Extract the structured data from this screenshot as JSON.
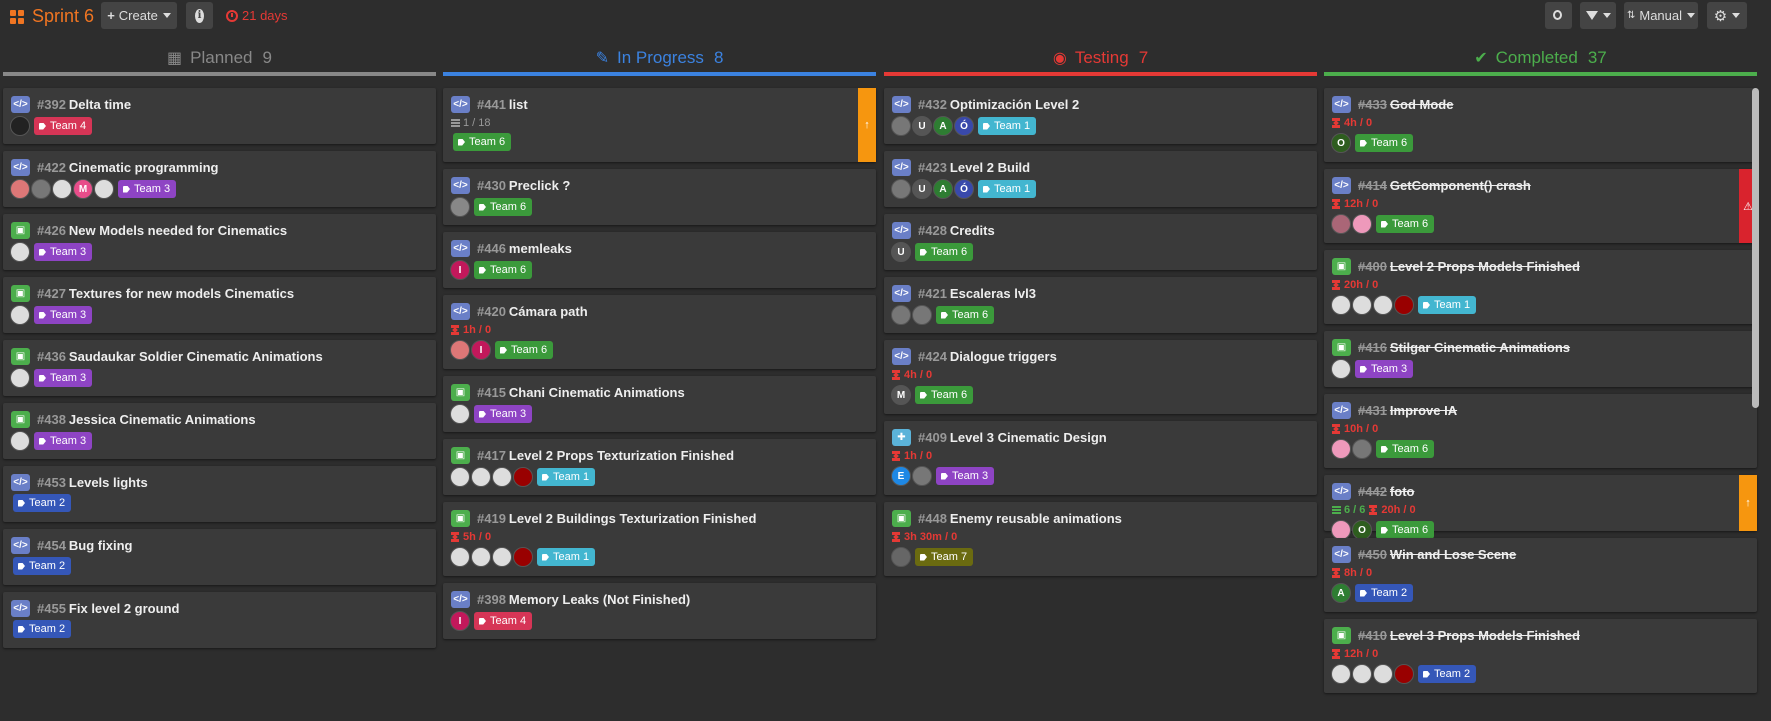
{
  "header": {
    "sprint": "Sprint 6",
    "create": "Create",
    "days": "21 days",
    "manual": "Manual"
  },
  "colors": {
    "Team 1": "#43b6d0",
    "Team 2": "#3557b8",
    "Team 3": "#8e44c4",
    "Team 4": "#d63556",
    "Team 6": "#3b9a3b",
    "Team 7": "#6b6b10"
  },
  "columns": [
    {
      "name": "Planned",
      "count": "9",
      "color": "#888888",
      "icon": "calendar-icon",
      "cards": [
        {
          "type": "code",
          "num": "#392",
          "title": "Delta time",
          "people": [
            {
              "c": "#222",
              "l": ""
            }
          ],
          "tag": "Team 4"
        },
        {
          "type": "code",
          "num": "#422",
          "title": "Cinematic programming",
          "people": [
            {
              "c": "#d77",
              "l": ""
            },
            {
              "c": "#777",
              "l": ""
            },
            {
              "c": "#ddd",
              "l": ""
            },
            {
              "c": "#e84d8a",
              "l": "M"
            },
            {
              "c": "#ddd",
              "l": ""
            }
          ],
          "tag": "Team 3"
        },
        {
          "type": "img",
          "num": "#426",
          "title": "New Models needed for Cinematics",
          "people": [
            {
              "c": "#ddd",
              "l": ""
            }
          ],
          "tag": "Team 3"
        },
        {
          "type": "img",
          "num": "#427",
          "title": "Textures for new models Cinematics",
          "people": [
            {
              "c": "#ddd",
              "l": ""
            }
          ],
          "tag": "Team 3"
        },
        {
          "type": "img",
          "num": "#436",
          "title": "Saudaukar Soldier Cinematic Animations",
          "people": [
            {
              "c": "#ddd",
              "l": ""
            }
          ],
          "tag": "Team 3"
        },
        {
          "type": "img",
          "num": "#438",
          "title": "Jessica Cinematic Animations",
          "people": [
            {
              "c": "#ddd",
              "l": ""
            }
          ],
          "tag": "Team 3"
        },
        {
          "type": "code",
          "num": "#453",
          "title": "Levels lights",
          "people": [],
          "tag": "Team 2"
        },
        {
          "type": "code",
          "num": "#454",
          "title": "Bug fixing",
          "people": [],
          "tag": "Team 2"
        },
        {
          "type": "code",
          "num": "#455",
          "title": "Fix level 2 ground",
          "people": [],
          "tag": "Team 2"
        }
      ]
    },
    {
      "name": "In Progress",
      "count": "8",
      "color": "#3b82e0",
      "icon": "wrench-icon",
      "cards": [
        {
          "type": "code",
          "num": "#441",
          "title": "list",
          "tasks": "1 / 18",
          "people": [],
          "tag": "Team 6",
          "flag": "up"
        },
        {
          "type": "code",
          "num": "#430",
          "title": "Preclick ?",
          "people": [
            {
              "c": "#888",
              "l": ""
            }
          ],
          "tag": "Team 6"
        },
        {
          "type": "code",
          "num": "#446",
          "title": "memleaks",
          "people": [
            {
              "c": "#c2185b",
              "l": "I"
            }
          ],
          "tag": "Team 6"
        },
        {
          "type": "code",
          "num": "#420",
          "title": "Cámara path",
          "hours": "1h / 0",
          "people": [
            {
              "c": "#d77",
              "l": ""
            },
            {
              "c": "#c2185b",
              "l": "I"
            }
          ],
          "tag": "Team 6"
        },
        {
          "type": "img",
          "num": "#415",
          "title": "Chani Cinematic Animations",
          "people": [
            {
              "c": "#ddd",
              "l": ""
            }
          ],
          "tag": "Team 3"
        },
        {
          "type": "img",
          "num": "#417",
          "title": "Level 2 Props Texturization Finished",
          "people": [
            {
              "c": "#ddd",
              "l": ""
            },
            {
              "c": "#ddd",
              "l": ""
            },
            {
              "c": "#ddd",
              "l": ""
            },
            {
              "c": "#900",
              "l": ""
            }
          ],
          "tag": "Team 1"
        },
        {
          "type": "img",
          "num": "#419",
          "title": "Level 2 Buildings Texturization Finished",
          "hours": "5h / 0",
          "people": [
            {
              "c": "#ddd",
              "l": ""
            },
            {
              "c": "#ddd",
              "l": ""
            },
            {
              "c": "#ddd",
              "l": ""
            },
            {
              "c": "#900",
              "l": ""
            }
          ],
          "tag": "Team 1"
        },
        {
          "type": "code",
          "num": "#398",
          "title": "Memory Leaks (Not Finished)",
          "people": [
            {
              "c": "#c2185b",
              "l": "I"
            }
          ],
          "tag": "Team 4"
        }
      ]
    },
    {
      "name": "Testing",
      "count": "7",
      "color": "#e53935",
      "icon": "gamepad-icon",
      "cards": [
        {
          "type": "code",
          "num": "#432",
          "title": "Optimización Level 2",
          "people": [
            {
              "c": "#777",
              "l": ""
            },
            {
              "c": "#555",
              "l": "U"
            },
            {
              "c": "#2e7d32",
              "l": "A"
            },
            {
              "c": "#3949ab",
              "l": "Ó"
            }
          ],
          "tag": "Team 1"
        },
        {
          "type": "code",
          "num": "#423",
          "title": "Level 2 Build",
          "people": [
            {
              "c": "#777",
              "l": ""
            },
            {
              "c": "#555",
              "l": "U"
            },
            {
              "c": "#2e7d32",
              "l": "A"
            },
            {
              "c": "#3949ab",
              "l": "Ó"
            }
          ],
          "tag": "Team 1"
        },
        {
          "type": "code",
          "num": "#428",
          "title": "Credits",
          "people": [
            {
              "c": "#555",
              "l": "U"
            }
          ],
          "tag": "Team 6"
        },
        {
          "type": "code",
          "num": "#421",
          "title": "Escaleras lvl3",
          "people": [
            {
              "c": "#777",
              "l": ""
            },
            {
              "c": "#777",
              "l": ""
            }
          ],
          "tag": "Team 6"
        },
        {
          "type": "code",
          "num": "#424",
          "title": "Dialogue triggers",
          "hours": "4h / 0",
          "people": [
            {
              "c": "#555",
              "l": "M"
            }
          ],
          "tag": "Team 6"
        },
        {
          "type": "puzzle",
          "num": "#409",
          "title": "Level 3 Cinematic Design",
          "hours": "1h / 0",
          "people": [
            {
              "c": "#1e88e5",
              "l": "E"
            },
            {
              "c": "#777",
              "l": ""
            }
          ],
          "tag": "Team 3"
        },
        {
          "type": "img",
          "num": "#448",
          "title": "Enemy reusable animations",
          "hours": "3h 30m / 0",
          "people": [
            {
              "c": "#666",
              "l": ""
            }
          ],
          "tag": "Team 7"
        }
      ]
    },
    {
      "name": "Completed",
      "count": "37",
      "color": "#4cae4c",
      "icon": "check-icon",
      "cards": [
        {
          "type": "code",
          "num": "#433",
          "title": "God Mode",
          "hours": "4h / 0",
          "people": [
            {
              "c": "#2e5d1f",
              "l": "O"
            }
          ],
          "tag": "Team 6",
          "strike": true
        },
        {
          "type": "code",
          "num": "#414",
          "title": "GetComponent() crash",
          "hours": "12h / 0",
          "people": [
            {
              "c": "#a67",
              "l": ""
            },
            {
              "c": "#e9b",
              "l": ""
            }
          ],
          "tag": "Team 6",
          "strike": true,
          "flag": "warn"
        },
        {
          "type": "img",
          "num": "#400",
          "title": "Level 2 Props Models Finished",
          "hours": "20h / 0",
          "people": [
            {
              "c": "#ddd",
              "l": ""
            },
            {
              "c": "#ddd",
              "l": ""
            },
            {
              "c": "#ddd",
              "l": ""
            },
            {
              "c": "#900",
              "l": ""
            }
          ],
          "tag": "Team 1",
          "strike": true
        },
        {
          "type": "img",
          "num": "#416",
          "title": "Stilgar Cinematic Animations",
          "people": [
            {
              "c": "#ddd",
              "l": ""
            }
          ],
          "tag": "Team 3",
          "strike": true
        },
        {
          "type": "code",
          "num": "#431",
          "title": "Improve IA",
          "hours": "10h / 0",
          "people": [
            {
              "c": "#e9b",
              "l": ""
            },
            {
              "c": "#777",
              "l": ""
            }
          ],
          "tag": "Team 6",
          "strike": true
        },
        {
          "type": "code",
          "num": "#442",
          "title": "foto",
          "tasks": "6 / 6",
          "hours": "20h / 0",
          "people": [
            {
              "c": "#e9b",
              "l": ""
            },
            {
              "c": "#2e5d1f",
              "l": "O"
            }
          ],
          "tag": "Team 6",
          "strike": true,
          "flag": "up",
          "inline": true
        },
        {
          "type": "code",
          "num": "#450",
          "title": "Win and Lose Scene",
          "hours": "8h / 0",
          "people": [
            {
              "c": "#2e7d32",
              "l": "A"
            }
          ],
          "tag": "Team 2",
          "strike": true
        },
        {
          "type": "img",
          "num": "#410",
          "title": "Level 3 Props Models Finished",
          "hours": "12h / 0",
          "people": [
            {
              "c": "#ddd",
              "l": ""
            },
            {
              "c": "#ddd",
              "l": ""
            },
            {
              "c": "#ddd",
              "l": ""
            },
            {
              "c": "#900",
              "l": ""
            }
          ],
          "tag": "Team 2",
          "strike": true
        }
      ]
    }
  ]
}
